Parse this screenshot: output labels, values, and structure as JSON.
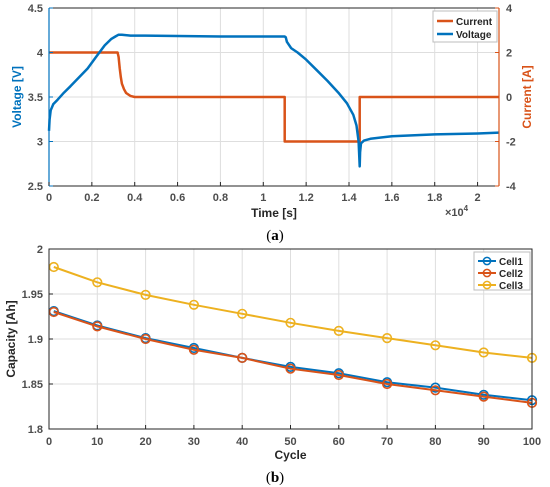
{
  "chart_data": [
    {
      "type": "line",
      "panel_label": "(a)",
      "xlabel": "Time [s]",
      "x_exponent": "×10",
      "x_exponent_power": "4",
      "ylabel_left": "Voltage [V]",
      "ylabel_right": "Current [A]",
      "xlim": [
        0,
        2.1
      ],
      "ylim_left": [
        2.5,
        4.5
      ],
      "ylim_right": [
        -4,
        4
      ],
      "x_ticks": [
        "0",
        "0.2",
        "0.4",
        "0.6",
        "0.8",
        "1",
        "1.2",
        "1.4",
        "1.6",
        "1.8",
        "2"
      ],
      "y_left_ticks": [
        "2.5",
        "3",
        "3.5",
        "4",
        "4.5"
      ],
      "y_right_ticks": [
        "-4",
        "-2",
        "0",
        "2",
        "4"
      ],
      "grid": true,
      "legend_position": "top-right",
      "series": [
        {
          "name": "Current",
          "axis": "right",
          "color": "#d95319",
          "x": [
            0,
            0.32,
            0.325,
            0.33,
            0.335,
            0.34,
            0.35,
            0.36,
            0.38,
            0.4,
            1.1,
            1.1,
            1.45,
            1.45,
            2.1
          ],
          "y": [
            2,
            2,
            1.8,
            1.3,
            0.9,
            0.6,
            0.35,
            0.18,
            0.05,
            0,
            0,
            -2,
            -2,
            0,
            0
          ]
        },
        {
          "name": "Voltage",
          "axis": "left",
          "color": "#0072bd",
          "x": [
            0,
            0.003,
            0.008,
            0.02,
            0.04,
            0.07,
            0.1,
            0.14,
            0.18,
            0.22,
            0.26,
            0.29,
            0.31,
            0.325,
            0.34,
            0.38,
            0.45,
            0.6,
            0.8,
            1.0,
            1.1,
            1.105,
            1.11,
            1.13,
            1.16,
            1.2,
            1.25,
            1.3,
            1.35,
            1.39,
            1.42,
            1.435,
            1.445,
            1.45,
            1.452,
            1.456,
            1.47,
            1.5,
            1.6,
            1.8,
            2.0,
            2.1
          ],
          "y": [
            3.12,
            3.25,
            3.35,
            3.42,
            3.47,
            3.55,
            3.62,
            3.72,
            3.82,
            3.95,
            4.08,
            4.15,
            4.18,
            4.2,
            4.2,
            4.19,
            4.19,
            4.185,
            4.18,
            4.18,
            4.18,
            4.17,
            4.12,
            4.05,
            4.0,
            3.92,
            3.8,
            3.68,
            3.55,
            3.43,
            3.3,
            3.18,
            3.0,
            2.72,
            2.88,
            2.98,
            3.01,
            3.03,
            3.06,
            3.08,
            3.09,
            3.1
          ]
        }
      ]
    },
    {
      "type": "line",
      "panel_label": "(b)",
      "xlabel": "Cycle",
      "ylabel": "Capacity [Ah]",
      "xlim": [
        0,
        100
      ],
      "ylim": [
        1.8,
        2.0
      ],
      "x_ticks": [
        "0",
        "10",
        "20",
        "30",
        "40",
        "50",
        "60",
        "70",
        "80",
        "90",
        "100"
      ],
      "y_ticks": [
        "1.8",
        "1.85",
        "1.9",
        "1.95",
        "2"
      ],
      "grid": true,
      "legend_position": "top-right",
      "marker": "circle",
      "x": [
        1,
        10,
        20,
        30,
        40,
        50,
        60,
        70,
        80,
        90,
        100
      ],
      "series": [
        {
          "name": "Cell1",
          "color": "#0072bd",
          "values": [
            1.931,
            1.915,
            1.901,
            1.89,
            1.879,
            1.869,
            1.862,
            1.852,
            1.846,
            1.838,
            1.832
          ]
        },
        {
          "name": "Cell2",
          "color": "#d95319",
          "values": [
            1.93,
            1.914,
            1.9,
            1.888,
            1.879,
            1.867,
            1.86,
            1.85,
            1.843,
            1.836,
            1.829
          ]
        },
        {
          "name": "Cell3",
          "color": "#edb120",
          "values": [
            1.98,
            1.963,
            1.949,
            1.938,
            1.928,
            1.918,
            1.909,
            1.901,
            1.893,
            1.885,
            1.879
          ]
        }
      ]
    }
  ]
}
